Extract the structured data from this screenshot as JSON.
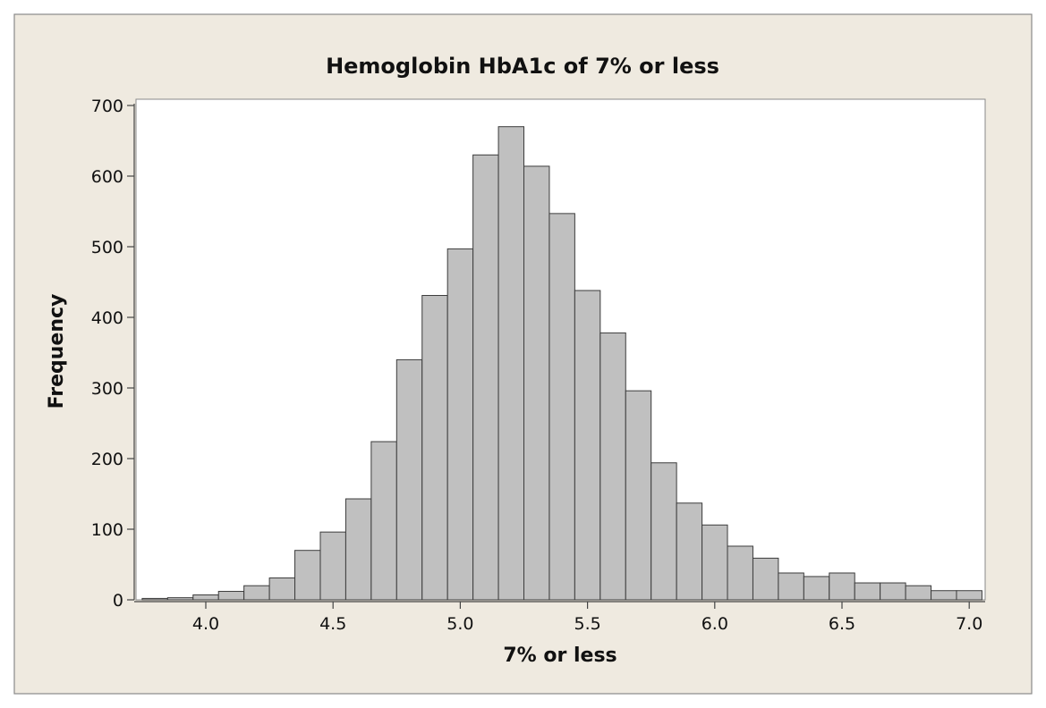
{
  "chart_data": {
    "type": "bar",
    "title": "Hemoglobin HbA1c of 7% or less",
    "xlabel": "7% or less",
    "ylabel": "Frequency",
    "bin_start": 3.75,
    "bin_width": 0.1,
    "values": [
      2,
      3,
      7,
      12,
      20,
      31,
      70,
      96,
      143,
      224,
      340,
      431,
      497,
      630,
      670,
      614,
      547,
      438,
      378,
      296,
      194,
      137,
      106,
      76,
      59,
      38,
      33,
      38,
      24,
      24,
      20,
      13,
      13
    ],
    "xlim": [
      3.75,
      7.05
    ],
    "ylim": [
      0,
      700
    ],
    "xticks": [
      "4.0",
      "4.5",
      "5.0",
      "5.5",
      "6.0",
      "6.5",
      "7.0"
    ],
    "yticks": [
      "0",
      "100",
      "200",
      "300",
      "400",
      "500",
      "600",
      "700"
    ],
    "grid": false,
    "colors": {
      "frame_bg": "#efeae0",
      "plot_bg": "#ffffff",
      "bar_fill": "#c0c0c0",
      "bar_stroke": "#3c3c3c"
    }
  }
}
